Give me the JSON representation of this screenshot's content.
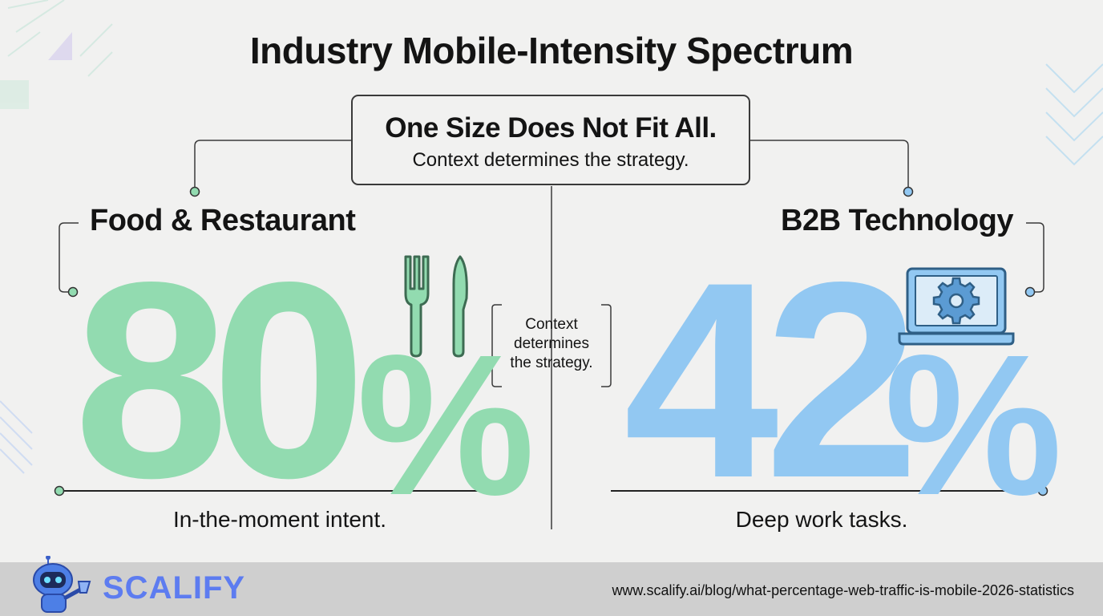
{
  "title": "Industry Mobile-Intensity Spectrum",
  "center": {
    "headline": "One Size Does Not Fit All.",
    "subline": "Context determines the strategy."
  },
  "middle_note": [
    "Context",
    "determines",
    "the strategy."
  ],
  "left": {
    "category": "Food & Restaurant",
    "value": "80",
    "unit": "%",
    "caption": "In-the-moment intent.",
    "icon": "fork-knife-icon",
    "color": "#92dbb0"
  },
  "right": {
    "category": "B2B Technology",
    "value": "42",
    "unit": "%",
    "caption": "Deep work tasks.",
    "icon": "laptop-gear-icon",
    "color": "#92c8f2"
  },
  "footer": {
    "brand": "SCALIFY",
    "url": "www.scalify.ai/blog/what-percentage-web-traffic-is-mobile-2026-statistics"
  }
}
